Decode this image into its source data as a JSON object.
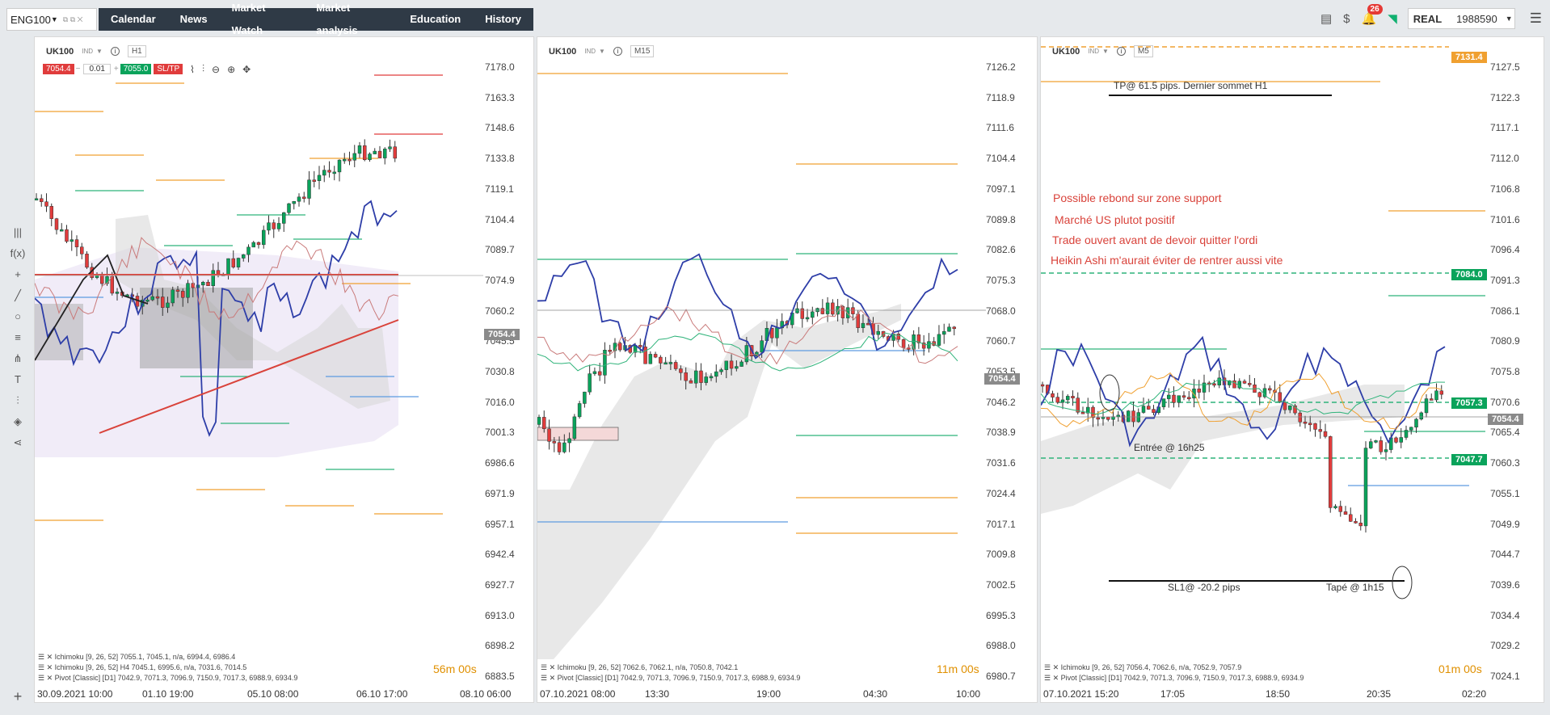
{
  "tab": {
    "symbol": "ENG100",
    "controls": "⧉ ⧉ ✕"
  },
  "nav": [
    "Calendar",
    "News",
    "Market Watch",
    "Market analysis",
    "Education",
    "History"
  ],
  "topright": {
    "notifications": "26",
    "mode": "REAL",
    "account": "1988590"
  },
  "colors": {
    "up": "#0aa35b",
    "down": "#e03c3c",
    "ichimoku": "#2e3ea8",
    "orange": "#f0a030",
    "green": "#2fb37a",
    "cloud": "#d9d9d9",
    "bidtag": "#8a8a8a"
  },
  "panels": [
    {
      "symbol": "UK100",
      "sub": "IND",
      "timeframe": "H1",
      "trade": {
        "sell": "7054.4",
        "lot": "0.01",
        "buy": "7055.0",
        "sltp": "SL/TP",
        "minus": "−",
        "plus": "+"
      },
      "bid": "7054.4",
      "yticks": [
        "7178.0",
        "7163.3",
        "7148.6",
        "7133.8",
        "7119.1",
        "7104.4",
        "7089.7",
        "7074.9",
        "7060.2",
        "7045.5",
        "7030.8",
        "7016.0",
        "7001.3",
        "6986.6",
        "6971.9",
        "6957.1",
        "6942.4",
        "6927.7",
        "6913.0",
        "6898.2",
        "6883.5"
      ],
      "xticks": [
        "30.09.2021 10:00",
        "01.10 19:00",
        "05.10 08:00",
        "06.10 17:00",
        "08.10 06:00"
      ],
      "legends": [
        "☰ ✕ Ichimoku [9, 26, 52] 7055.1, 7045.1, n/a, 6994.4, 6986.4",
        "☰ ✕ Ichimoku [9, 26, 52] H4 7045.1, 6995.6, n/a, 7031.6, 7014.5",
        "☰ ✕ Pivot [Classic] [D1] 7042.9, 7071.3, 7096.9, 7150.9, 7017.3, 6988.9, 6934.9"
      ],
      "timer": "56m 00s"
    },
    {
      "symbol": "UK100",
      "sub": "IND",
      "timeframe": "M15",
      "bid": "7054.4",
      "yticks": [
        "7126.2",
        "7118.9",
        "7111.6",
        "7104.4",
        "7097.1",
        "7089.8",
        "7082.6",
        "7075.3",
        "7068.0",
        "7060.7",
        "7053.5",
        "7046.2",
        "7038.9",
        "7031.6",
        "7024.4",
        "7017.1",
        "7009.8",
        "7002.5",
        "6995.3",
        "6988.0",
        "6980.7"
      ],
      "xticks": [
        "07.10.2021 08:00",
        "13:30",
        "19:00",
        "04:30",
        "10:00"
      ],
      "legends": [
        "☰ ✕ Ichimoku [9, 26, 52] 7062.6, 7062.1, n/a, 7050.8, 7042.1",
        "☰ ✕ Pivot [Classic] [D1] 7042.9, 7071.3, 7096.9, 7150.9, 7017.3, 6988.9, 6934.9"
      ],
      "timer": "11m 00s"
    },
    {
      "symbol": "UK100",
      "sub": "IND",
      "timeframe": "M5",
      "bid": "7054.4",
      "tags": {
        "tp": "7131.4",
        "entry": "7084.0",
        "level1": "7057.3",
        "level2": "7047.7"
      },
      "yticks": [
        "7127.5",
        "7122.3",
        "7117.1",
        "7112.0",
        "7106.8",
        "7101.6",
        "7096.4",
        "7091.3",
        "7086.1",
        "7080.9",
        "7075.8",
        "7070.6",
        "7065.4",
        "7060.3",
        "7055.1",
        "7049.9",
        "7044.7",
        "7039.6",
        "7034.4",
        "7029.2",
        "7024.1"
      ],
      "xticks": [
        "07.10.2021 15:20",
        "17:05",
        "18:50",
        "20:35",
        "02:20"
      ],
      "legends": [
        "☰ ✕ Ichimoku [9, 26, 52] 7056.4, 7062.6, n/a, 7052.9, 7057.9",
        "☰ ✕ Pivot [Classic] [D1] 7042.9, 7071.3, 7096.9, 7150.9, 7017.3, 6988.9, 6934.9"
      ],
      "timer": "01m 00s",
      "annotations": {
        "tp": "TP@ 61.5 pips. Dernier sommet H1",
        "sl": "SL1@ -20.2 pips",
        "entry": "Entrée @ 16h25",
        "hit": "Tapé @ 1h15"
      },
      "notes": [
        "Possible rebond sur zone support",
        "Marché US plutot positif",
        "Trade ouvert avant de devoir quitter l'ordi",
        "Heikin Ashi m'aurait éviter de rentrer aussi vite"
      ]
    }
  ]
}
